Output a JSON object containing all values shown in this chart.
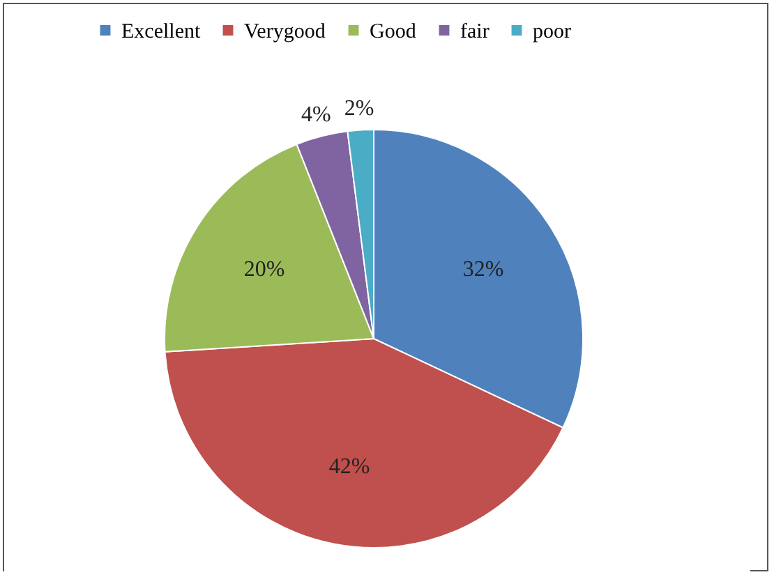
{
  "chart_data": {
    "type": "pie",
    "categories": [
      "Excellent",
      "Verygood",
      "Good",
      "fair",
      "poor"
    ],
    "values": [
      32,
      42,
      20,
      4,
      2
    ],
    "colors": [
      "#4f81bd",
      "#c0504d",
      "#9bbb59",
      "#8064a2",
      "#4bacc6"
    ],
    "value_labels": [
      "32%",
      "42%",
      "20%",
      "4%",
      "2%"
    ],
    "legend": "top"
  }
}
